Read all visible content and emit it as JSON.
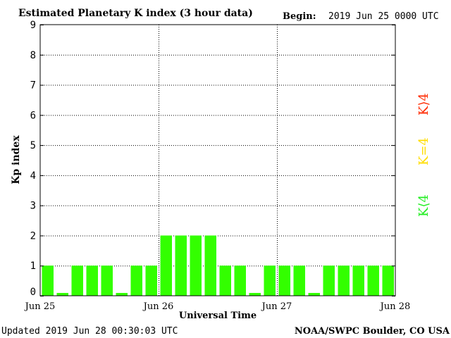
{
  "header": {
    "title": "Estimated Planetary K index (3 hour data)",
    "begin_label": "Begin:",
    "begin_value": "2019 Jun 25 0000 UTC"
  },
  "footer": {
    "updated": "Updated 2019 Jun 28 00:30:03 UTC",
    "source": "NOAA/SWPC Boulder, CO USA"
  },
  "legend": {
    "high": "K⟩4",
    "equal": "K=4",
    "low": "K⟨4",
    "colors": {
      "high": "#ff2a00",
      "equal": "#ffdd00",
      "low": "#22ee22"
    }
  },
  "chart_data": {
    "type": "bar",
    "ylabel": "Kp index",
    "xlabel": "Universal Time",
    "ylim": [
      0,
      9
    ],
    "yticks": [
      "0",
      "1",
      "2",
      "3",
      "4",
      "5",
      "6",
      "7",
      "8",
      "9"
    ],
    "x_tick_labels": [
      "Jun 25",
      "Jun 26",
      "Jun 27",
      "Jun 28"
    ],
    "grid": "dotted vertical at day boundaries, dotted horizontal at each Kp level",
    "bar_color": "#33ff00",
    "interval_hours": 3,
    "values": [
      1,
      0,
      1,
      1,
      1,
      0,
      1,
      1,
      2,
      2,
      2,
      2,
      1,
      1,
      0,
      1,
      1,
      1,
      0,
      1,
      1,
      1,
      1,
      1
    ]
  }
}
